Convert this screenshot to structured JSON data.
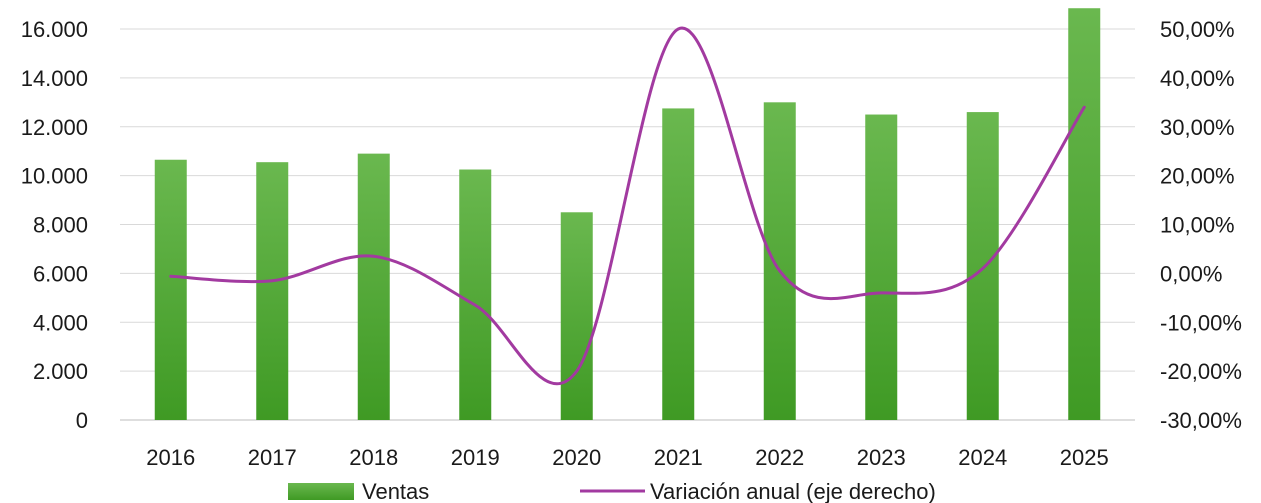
{
  "chart_data": {
    "type": "bar",
    "categories": [
      "2016",
      "2017",
      "2018",
      "2019",
      "2020",
      "2021",
      "2022",
      "2023",
      "2024",
      "2025"
    ],
    "series": [
      {
        "name": "Ventas",
        "type": "bar",
        "axis": "left",
        "color": "#4caf2a",
        "values": [
          10650,
          10550,
          10900,
          10250,
          8500,
          12750,
          13000,
          12500,
          12600,
          16850
        ]
      },
      {
        "name": "Variación anual (eje derecho)",
        "type": "line",
        "axis": "right",
        "color": "#a23aa0",
        "smooth": true,
        "values": [
          -0.6,
          -1.5,
          3.5,
          -6.5,
          -20.0,
          50.0,
          0.5,
          -4.0,
          1.0,
          34.0
        ]
      }
    ],
    "left_axis": {
      "ylim": [
        0,
        16000
      ],
      "ticks": [
        0,
        2000,
        4000,
        6000,
        8000,
        10000,
        12000,
        14000,
        16000
      ],
      "tick_labels": [
        "0",
        "2.000",
        "4.000",
        "6.000",
        "8.000",
        "10.000",
        "12.000",
        "14.000",
        "16.000"
      ]
    },
    "right_axis": {
      "ylim": [
        -30,
        50
      ],
      "ticks": [
        -30,
        -20,
        -10,
        0,
        10,
        20,
        30,
        40,
        50
      ],
      "tick_labels": [
        "-30,00%",
        "-20,00%",
        "-10,00%",
        "0,00%",
        "10,00%",
        "20,00%",
        "30,00%",
        "40,00%",
        "50,00%"
      ]
    },
    "grid": true,
    "legend_position": "bottom",
    "title": "",
    "xlabel": "",
    "ylabel": ""
  }
}
